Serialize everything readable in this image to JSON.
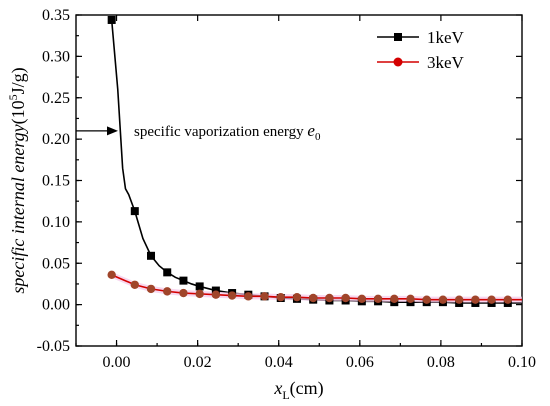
{
  "chart_data": {
    "type": "line",
    "xlabel_main": "x",
    "xlabel_sub": "L",
    "xlabel_unit": "(cm)",
    "ylabel_main": "specific internal energy",
    "ylabel_unit_pre": "(10",
    "ylabel_unit_sup": "5",
    "ylabel_unit_post": "J/g)",
    "xlim": [
      -0.01,
      0.1
    ],
    "ylim": [
      -0.05,
      0.35
    ],
    "xticks": [
      "0.00",
      "0.02",
      "0.04",
      "0.06",
      "0.08",
      "0.10"
    ],
    "xtick_values": [
      0.0,
      0.02,
      0.04,
      0.06,
      0.08,
      0.1
    ],
    "yticks": [
      "-0.05",
      "0.00",
      "0.05",
      "0.10",
      "0.15",
      "0.20",
      "0.25",
      "0.30",
      "0.35"
    ],
    "ytick_values": [
      -0.05,
      0.0,
      0.05,
      0.1,
      0.15,
      0.2,
      0.25,
      0.3,
      0.35
    ],
    "legend_position": "top-right",
    "grid": false,
    "series": [
      {
        "name": "1keV",
        "color": "#000000",
        "marker": "square",
        "x": [
          -0.0012,
          0.0045,
          0.0085,
          0.0125,
          0.0165,
          0.0205,
          0.0245,
          0.0285,
          0.0325,
          0.0365,
          0.0405,
          0.0445,
          0.0485,
          0.0525,
          0.0565,
          0.0605,
          0.0645,
          0.0685,
          0.0725,
          0.0765,
          0.0805,
          0.0845,
          0.0885,
          0.0925,
          0.0965
        ],
        "y": [
          0.344,
          0.113,
          0.059,
          0.039,
          0.029,
          0.022,
          0.017,
          0.014,
          0.012,
          0.01,
          0.008,
          0.007,
          0.006,
          0.005,
          0.005,
          0.004,
          0.004,
          0.003,
          0.003,
          0.003,
          0.003,
          0.002,
          0.002,
          0.002,
          0.002
        ],
        "curve_x": [
          -0.0012,
          0.0003,
          0.0015,
          0.0022,
          0.003,
          0.0045,
          0.0065,
          0.0085,
          0.0105,
          0.0125,
          0.0145,
          0.0165,
          0.0185,
          0.0205,
          0.0245,
          0.0285,
          0.0325,
          0.0365,
          0.0405,
          0.0445,
          0.0485,
          0.0525,
          0.0565,
          0.0605,
          0.0645,
          0.0685,
          0.0725,
          0.0765,
          0.0805,
          0.0845,
          0.0885,
          0.0925,
          0.0965,
          0.1
        ],
        "curve_y": [
          0.344,
          0.26,
          0.165,
          0.14,
          0.133,
          0.113,
          0.08,
          0.059,
          0.047,
          0.039,
          0.033,
          0.029,
          0.025,
          0.022,
          0.017,
          0.014,
          0.012,
          0.01,
          0.008,
          0.007,
          0.006,
          0.005,
          0.005,
          0.004,
          0.004,
          0.003,
          0.003,
          0.003,
          0.003,
          0.002,
          0.002,
          0.002,
          0.002,
          0.002
        ]
      },
      {
        "name": "3keV",
        "color": "#d40000",
        "marker": "circle",
        "x": [
          -0.0012,
          0.0045,
          0.0085,
          0.0125,
          0.0165,
          0.0205,
          0.0245,
          0.0285,
          0.0325,
          0.0365,
          0.0405,
          0.0445,
          0.0485,
          0.0525,
          0.0565,
          0.0605,
          0.0645,
          0.0685,
          0.0725,
          0.0765,
          0.0805,
          0.0845,
          0.0885,
          0.0925,
          0.0965
        ],
        "y": [
          0.036,
          0.024,
          0.019,
          0.016,
          0.014,
          0.013,
          0.012,
          0.011,
          0.01,
          0.01,
          0.009,
          0.009,
          0.008,
          0.008,
          0.008,
          0.007,
          0.007,
          0.007,
          0.007,
          0.006,
          0.006,
          0.006,
          0.006,
          0.006,
          0.006
        ],
        "curve_x": [
          -0.0012,
          0.0045,
          0.0085,
          0.0125,
          0.0165,
          0.0205,
          0.0245,
          0.0285,
          0.0325,
          0.0365,
          0.0405,
          0.0445,
          0.0485,
          0.0525,
          0.0565,
          0.0605,
          0.0645,
          0.0685,
          0.0725,
          0.0765,
          0.0805,
          0.0845,
          0.0885,
          0.0925,
          0.0965,
          0.1
        ],
        "curve_y": [
          0.036,
          0.024,
          0.019,
          0.016,
          0.014,
          0.013,
          0.012,
          0.011,
          0.01,
          0.01,
          0.009,
          0.009,
          0.008,
          0.008,
          0.008,
          0.007,
          0.007,
          0.007,
          0.007,
          0.006,
          0.006,
          0.006,
          0.006,
          0.006,
          0.006,
          0.006
        ]
      }
    ],
    "annotation": {
      "text": "specific vaporization energy ",
      "symbol": "e",
      "symbol_sub": "0",
      "y": 0.21
    }
  }
}
